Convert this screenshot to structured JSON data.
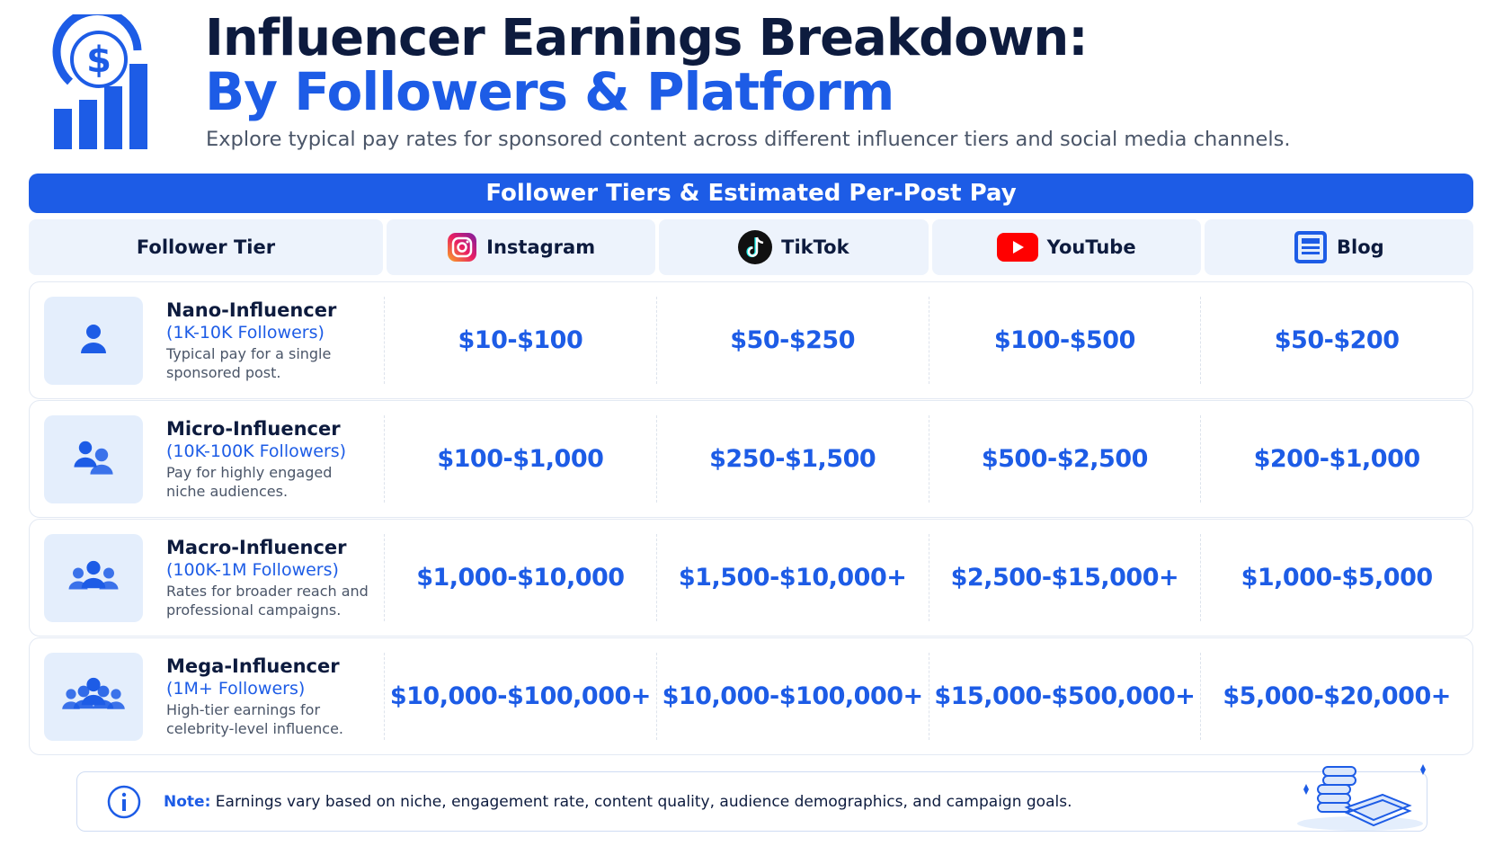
{
  "header": {
    "title_line1": "Influencer Earnings Breakdown:",
    "title_line2": "By Followers & Platform",
    "subtitle": "Explore typical pay rates for sponsored content across different influencer tiers and social media channels."
  },
  "table": {
    "banner": "Follower Tiers & Estimated Per-Post Pay",
    "columns": [
      "Follower Tier",
      "Instagram",
      "TikTok",
      "YouTube",
      "Blog"
    ],
    "rows": [
      {
        "name": "Nano-Influencer",
        "range": "(1K-10K Followers)",
        "description": "Typical pay for a single sponsored post.",
        "values": [
          "$10-$100",
          "$50-$250",
          "$100-$500",
          "$50-$200"
        ]
      },
      {
        "name": "Micro-Influencer",
        "range": "(10K-100K Followers)",
        "description": "Pay for highly engaged niche audiences.",
        "values": [
          "$100-$1,000",
          "$250-$1,500",
          "$500-$2,500",
          "$200-$1,000"
        ]
      },
      {
        "name": "Macro-Influencer",
        "range": "(100K-1M Followers)",
        "description": "Rates for broader reach and professional campaigns.",
        "values": [
          "$1,000-$10,000",
          "$1,500-$10,000+",
          "$2,500-$15,000+",
          "$1,000-$5,000"
        ]
      },
      {
        "name": "Mega-Influencer",
        "range": "(1M+ Followers)",
        "description": "High-tier earnings for celebrity-level influence.",
        "values": [
          "$10,000-$100,000+",
          "$10,000-$100,000+",
          "$15,000-$500,000+",
          "$5,000-$20,000+"
        ]
      }
    ]
  },
  "note": {
    "label": "Note:",
    "text": "Earnings vary based on niche, engagement rate, content quality, audience demographics, and campaign goals."
  }
}
